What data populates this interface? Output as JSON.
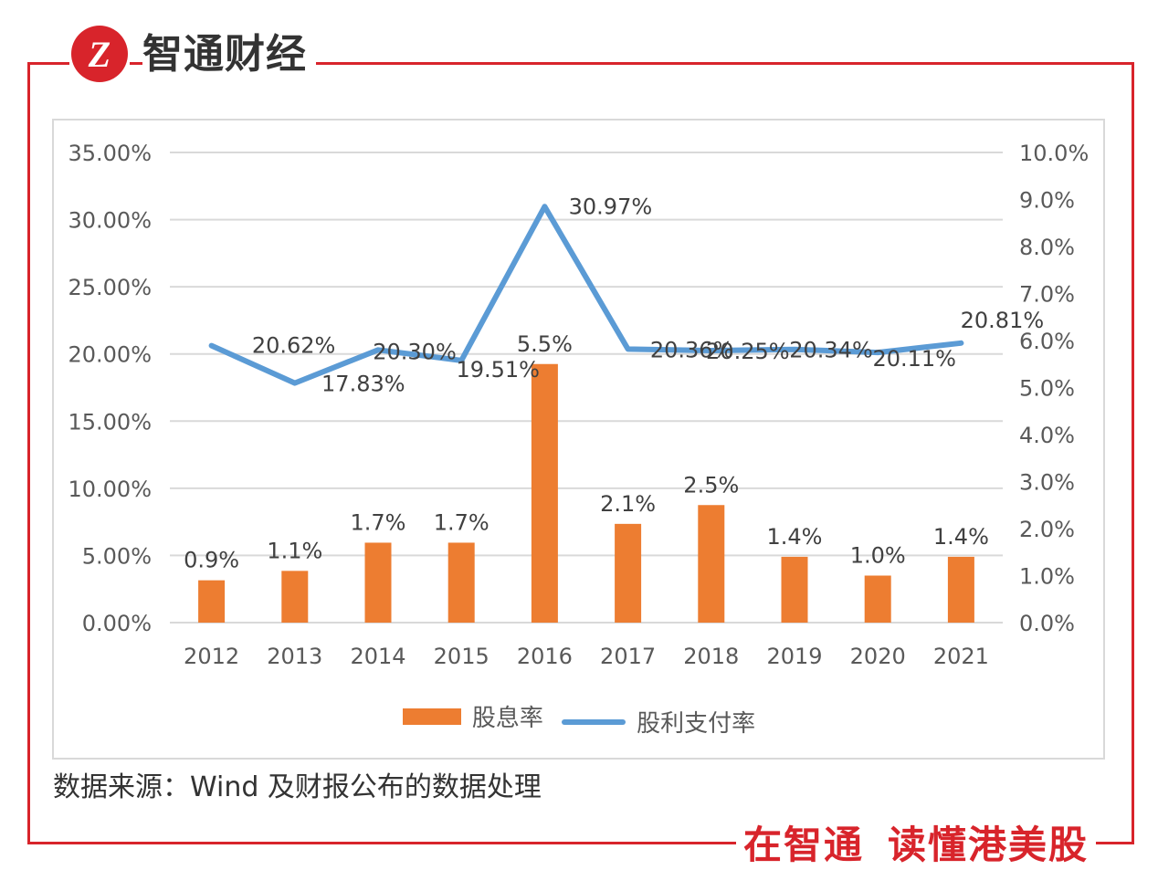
{
  "brand": {
    "name": "智通财经",
    "logo_text": "Z"
  },
  "footer": {
    "source_note": "数据来源：Wind 及财报公布的数据处理",
    "slogan_left": "在智通",
    "slogan_right": "读懂港美股"
  },
  "colors": {
    "accent": "#d8242b",
    "bar": "#ed7d31",
    "line": "#5b9bd5",
    "grid": "#d9d9d9",
    "text": "#595959"
  },
  "chart_data": {
    "type": "bar",
    "categories": [
      "2012",
      "2013",
      "2014",
      "2015",
      "2016",
      "2017",
      "2018",
      "2019",
      "2020",
      "2021"
    ],
    "series": [
      {
        "name": "股息率",
        "type": "bar",
        "axis": "right",
        "values": [
          0.9,
          1.1,
          1.7,
          1.7,
          5.5,
          2.1,
          2.5,
          1.4,
          1.0,
          1.4
        ],
        "labels": [
          "0.9%",
          "1.1%",
          "1.7%",
          "1.7%",
          "5.5%",
          "2.1%",
          "2.5%",
          "1.4%",
          "1.0%",
          "1.4%"
        ]
      },
      {
        "name": "股利支付率",
        "type": "line",
        "axis": "left",
        "values": [
          20.62,
          17.83,
          20.3,
          19.51,
          30.97,
          20.36,
          20.25,
          20.34,
          20.11,
          20.81
        ],
        "labels": [
          "20.62%",
          "17.83%",
          "20.30%",
          "19.51%",
          "30.97%",
          "20.36%",
          "20.25%",
          "20.34%",
          "20.11%",
          "20.81%"
        ]
      }
    ],
    "y_left": {
      "ylim": [
        0,
        35
      ],
      "ticks": [
        "0.00%",
        "5.00%",
        "10.00%",
        "15.00%",
        "20.00%",
        "25.00%",
        "30.00%",
        "35.00%"
      ]
    },
    "y_right": {
      "ylim": [
        0,
        10
      ],
      "ticks": [
        "0.0%",
        "1.0%",
        "2.0%",
        "3.0%",
        "4.0%",
        "5.0%",
        "6.0%",
        "7.0%",
        "8.0%",
        "9.0%",
        "10.0%"
      ]
    },
    "grid": true,
    "legend": "bottom"
  }
}
